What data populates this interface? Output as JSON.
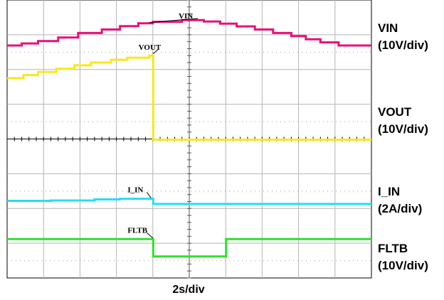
{
  "chart_data": {
    "type": "line",
    "title": "",
    "xlabel": "2s/div",
    "ylabel": "",
    "grid": true,
    "divisions": {
      "x": 10,
      "y": 8
    },
    "xlim_div": [
      0,
      10
    ],
    "ylim_div": [
      -4,
      4
    ],
    "channels": [
      {
        "name": "VIN",
        "scale": "(10V/div)",
        "color": "#e6117a",
        "segments": [
          [
            0.0,
            2.69
          ],
          [
            0.4,
            2.75
          ],
          [
            0.85,
            2.82
          ],
          [
            1.4,
            2.92
          ],
          [
            1.95,
            3.05
          ],
          [
            2.6,
            3.15
          ],
          [
            3.1,
            3.25
          ],
          [
            3.6,
            3.33
          ],
          [
            4.0,
            3.37
          ],
          [
            4.8,
            3.42
          ],
          [
            5.4,
            3.38
          ],
          [
            5.85,
            3.32
          ],
          [
            6.3,
            3.24
          ],
          [
            6.8,
            3.15
          ],
          [
            7.3,
            3.05
          ],
          [
            7.8,
            2.96
          ],
          [
            8.2,
            2.87
          ],
          [
            8.6,
            2.78
          ],
          [
            9.1,
            2.69
          ],
          [
            10.0,
            2.69
          ]
        ]
      },
      {
        "name": "VOUT",
        "scale": "(10V/div)",
        "color": "#f5e91c",
        "segments": [
          [
            0.0,
            1.75
          ],
          [
            0.45,
            1.84
          ],
          [
            0.85,
            1.93
          ],
          [
            1.35,
            2.02
          ],
          [
            1.85,
            2.12
          ],
          [
            2.3,
            2.2
          ],
          [
            2.85,
            2.28
          ],
          [
            3.3,
            2.34
          ],
          [
            3.9,
            2.4
          ],
          [
            4.0,
            2.4
          ],
          [
            4.01,
            -0.02
          ],
          [
            10.0,
            -0.02
          ]
        ]
      },
      {
        "name": "I_IN",
        "scale": "(2A/div)",
        "color": "#22e0f0",
        "segments": [
          [
            0.0,
            -1.78
          ],
          [
            1.2,
            -1.77
          ],
          [
            2.4,
            -1.74
          ],
          [
            3.1,
            -1.72
          ],
          [
            4.0,
            -1.72
          ],
          [
            4.01,
            -1.87
          ],
          [
            10.0,
            -1.87
          ]
        ]
      },
      {
        "name": "FLTB",
        "scale": "(10V/div)",
        "color": "#2de02d",
        "segments": [
          [
            0.0,
            -2.88
          ],
          [
            4.0,
            -2.88
          ],
          [
            4.01,
            -3.38
          ],
          [
            6.0,
            -3.38
          ],
          [
            6.01,
            -2.88
          ],
          [
            10.0,
            -2.88
          ]
        ]
      }
    ]
  }
}
